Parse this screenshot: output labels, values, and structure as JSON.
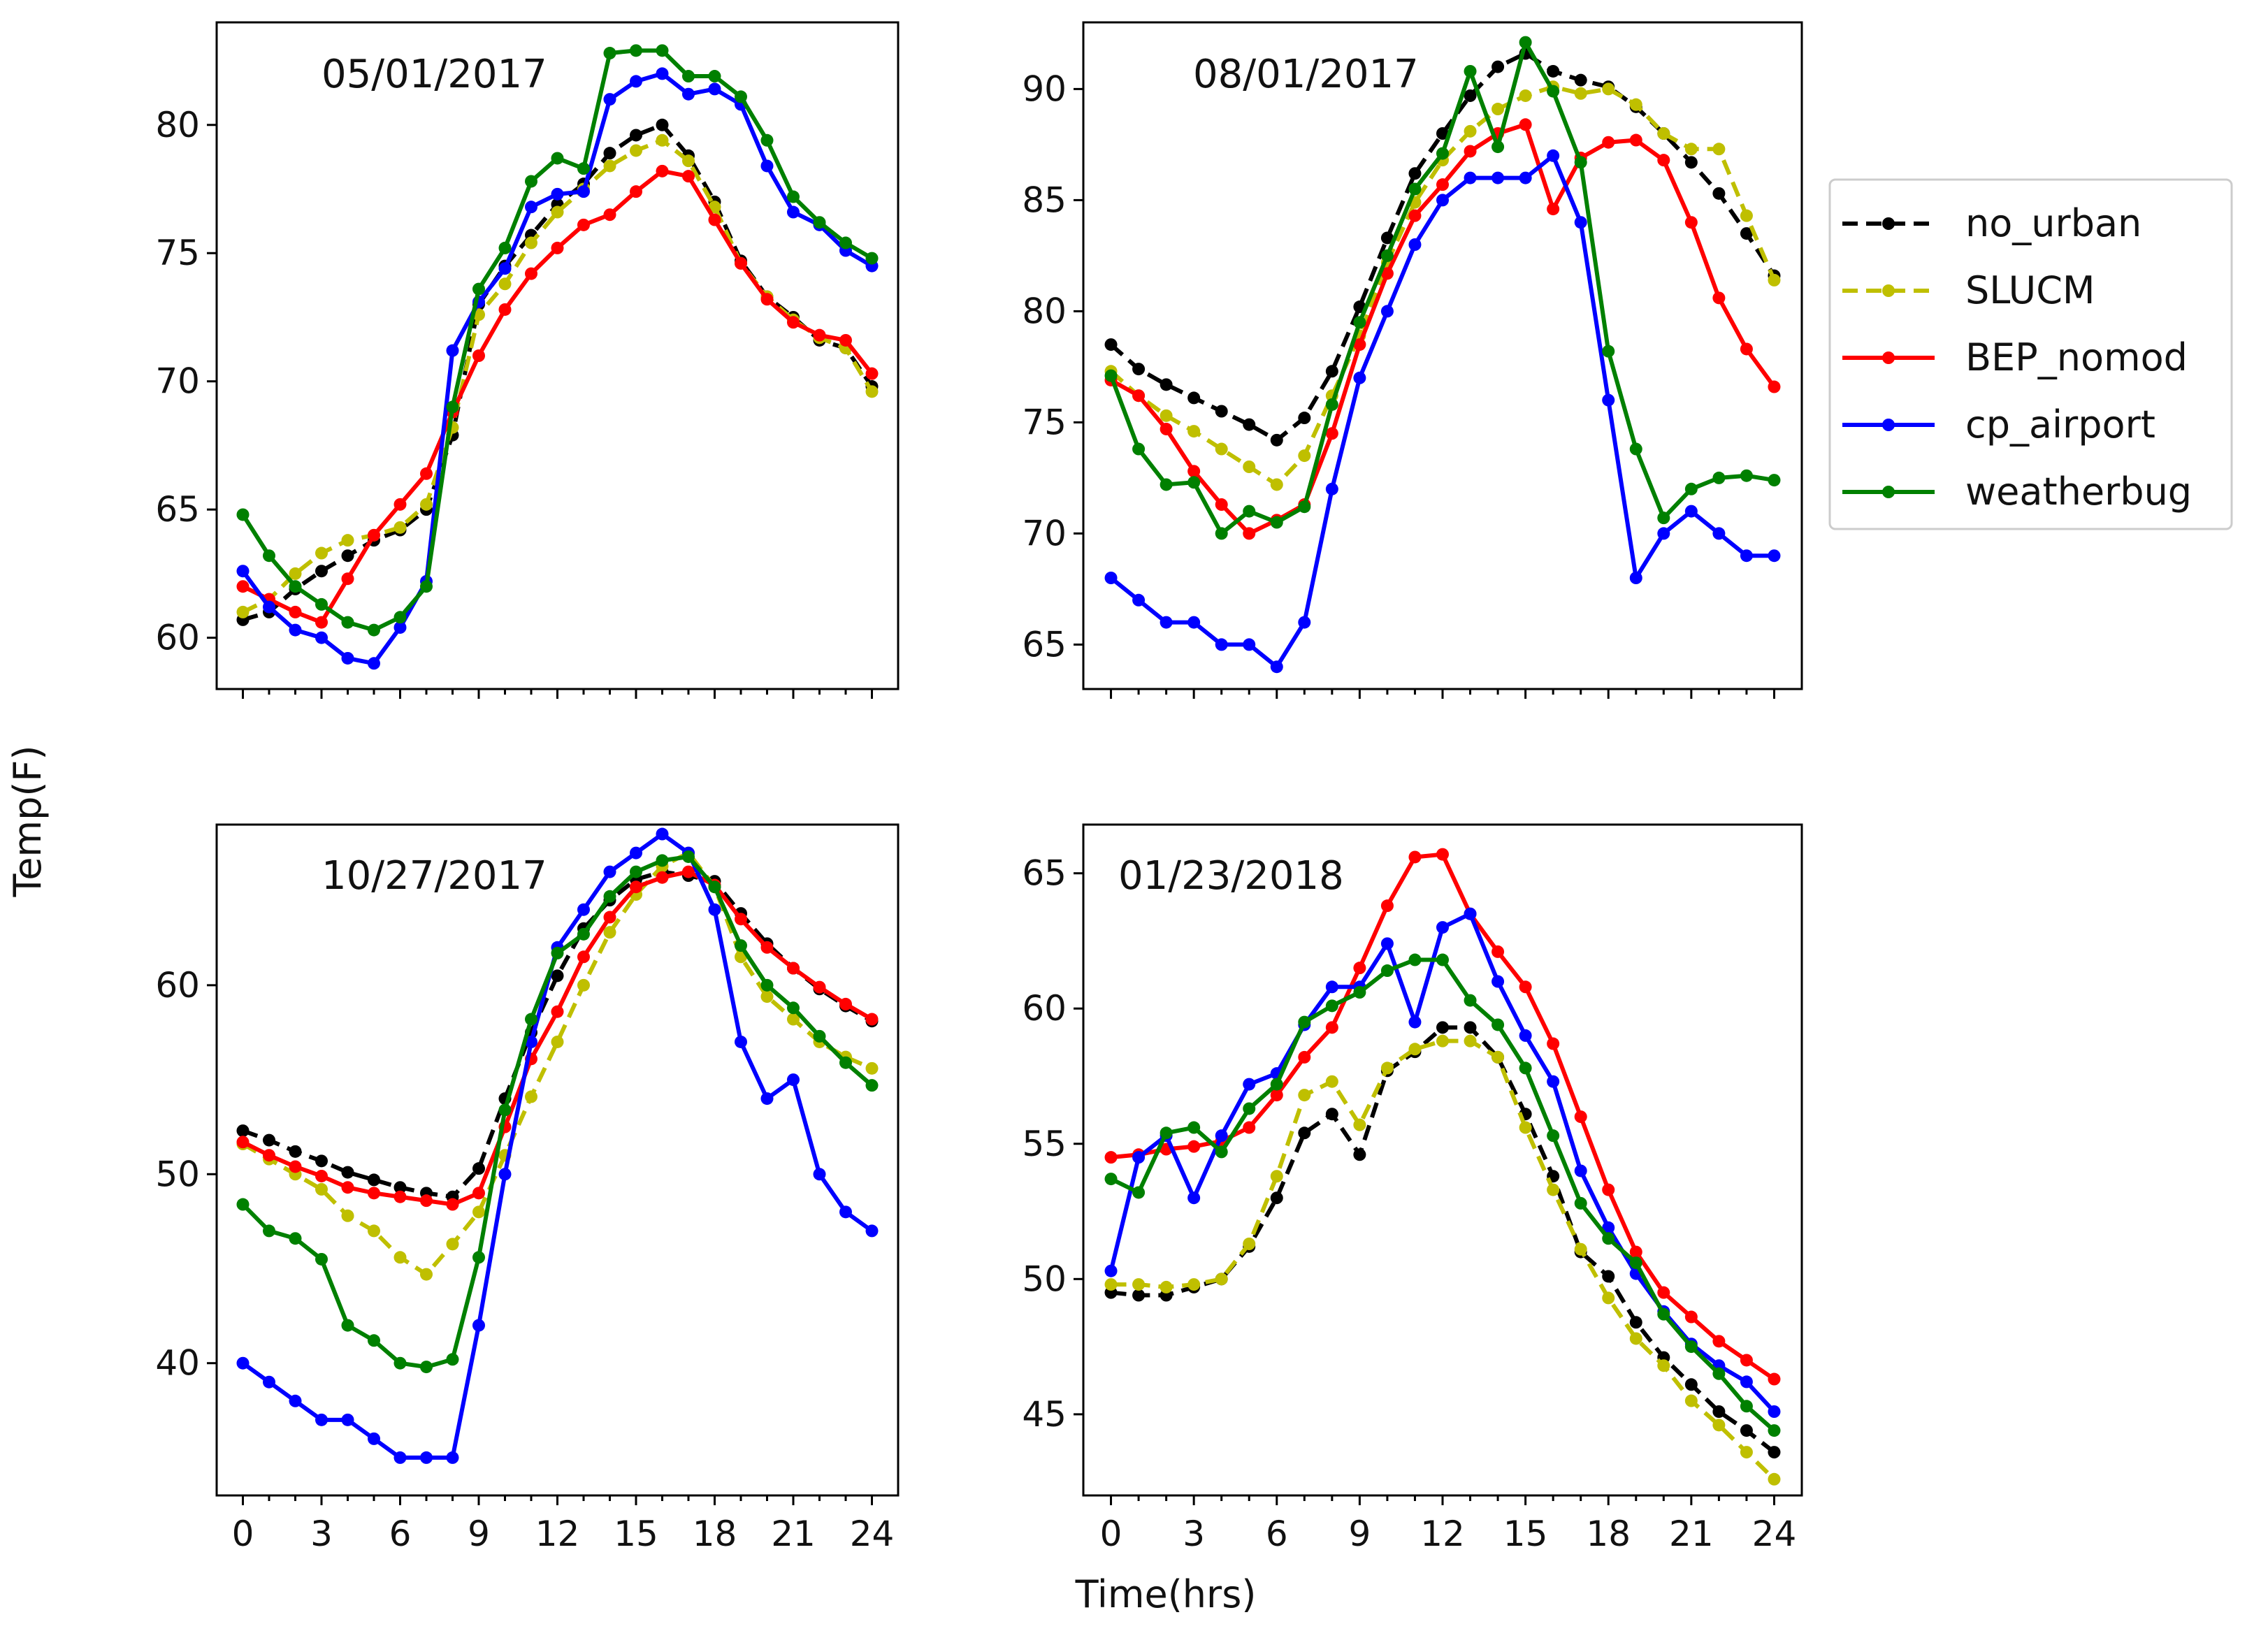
{
  "figure": {
    "ylabel": "Temp(F)",
    "xlabel": "Time(hrs)",
    "legend_position": "right"
  },
  "legend": [
    {
      "name": "no_urban",
      "color": "#000000",
      "style": "dashed"
    },
    {
      "name": "SLUCM",
      "color": "#bfbf00",
      "style": "dashed"
    },
    {
      "name": "BEP_nomod",
      "color": "#ff0000",
      "style": "solid"
    },
    {
      "name": "cp_airport",
      "color": "#0000ff",
      "style": "solid"
    },
    {
      "name": "weatherbug",
      "color": "#008000",
      "style": "solid"
    }
  ],
  "chart_data": [
    {
      "type": "line",
      "title": "05/01/2017",
      "xlabel": "",
      "ylabel": "Temp(F)",
      "xlim": [
        -1,
        25
      ],
      "ylim": [
        58,
        84
      ],
      "xticks": [
        0,
        3,
        6,
        9,
        12,
        15,
        18,
        21,
        24
      ],
      "yticks": [
        60,
        65,
        70,
        75,
        80
      ],
      "x": [
        0,
        1,
        2,
        3,
        4,
        5,
        6,
        7,
        8,
        9,
        10,
        11,
        12,
        13,
        14,
        15,
        16,
        17,
        18,
        19,
        20,
        21,
        22,
        23,
        24
      ],
      "series": [
        {
          "name": "no_urban",
          "values": [
            60.7,
            61.0,
            61.9,
            62.6,
            63.2,
            63.8,
            64.2,
            65.0,
            67.9,
            73.0,
            74.5,
            75.7,
            76.9,
            77.7,
            78.9,
            79.6,
            80.0,
            78.8,
            77.0,
            74.7,
            73.3,
            72.5,
            71.6,
            71.3,
            69.8
          ]
        },
        {
          "name": "SLUCM",
          "values": [
            61.0,
            61.5,
            62.5,
            63.3,
            63.8,
            64.0,
            64.3,
            65.2,
            68.2,
            72.6,
            73.8,
            75.4,
            76.6,
            77.5,
            78.4,
            79.0,
            79.4,
            78.6,
            76.8,
            74.6,
            73.3,
            72.4,
            71.7,
            71.3,
            69.6
          ]
        },
        {
          "name": "BEP_nomod",
          "values": [
            62.0,
            61.5,
            61.0,
            60.6,
            62.3,
            64.0,
            65.2,
            66.4,
            68.8,
            71.0,
            72.8,
            74.2,
            75.2,
            76.1,
            76.5,
            77.4,
            78.2,
            78.0,
            76.3,
            74.6,
            73.2,
            72.3,
            71.8,
            71.6,
            70.3
          ]
        },
        {
          "name": "cp_airport",
          "values": [
            62.6,
            61.2,
            60.3,
            60.0,
            59.2,
            59.0,
            60.4,
            62.2,
            71.2,
            73.1,
            74.4,
            76.8,
            77.3,
            77.4,
            81.0,
            81.7,
            82.0,
            81.2,
            81.4,
            80.8,
            78.4,
            76.6,
            76.1,
            75.1,
            74.5
          ]
        },
        {
          "name": "weatherbug",
          "values": [
            64.8,
            63.2,
            62.0,
            61.3,
            60.6,
            60.3,
            60.8,
            62.0,
            69.0,
            73.6,
            75.2,
            77.8,
            78.7,
            78.3,
            82.8,
            82.9,
            82.9,
            81.9,
            81.9,
            81.1,
            79.4,
            77.2,
            76.2,
            75.4,
            74.8
          ]
        }
      ]
    },
    {
      "type": "line",
      "title": "08/01/2017",
      "xlabel": "",
      "ylabel": "",
      "xlim": [
        -1,
        25
      ],
      "ylim": [
        63,
        93
      ],
      "xticks": [
        0,
        3,
        6,
        9,
        12,
        15,
        18,
        21,
        24
      ],
      "yticks": [
        65,
        70,
        75,
        80,
        85,
        90
      ],
      "x": [
        0,
        1,
        2,
        3,
        4,
        5,
        6,
        7,
        8,
        9,
        10,
        11,
        12,
        13,
        14,
        15,
        16,
        17,
        18,
        19,
        20,
        21,
        22,
        23,
        24
      ],
      "series": [
        {
          "name": "no_urban",
          "values": [
            78.5,
            77.4,
            76.7,
            76.1,
            75.5,
            74.9,
            74.2,
            75.2,
            77.3,
            80.2,
            83.3,
            86.2,
            88.0,
            89.7,
            91.0,
            91.6,
            90.8,
            90.4,
            90.1,
            89.2,
            88.0,
            86.7,
            85.3,
            83.5,
            81.6
          ]
        },
        {
          "name": "SLUCM",
          "values": [
            77.3,
            76.2,
            75.3,
            74.6,
            73.8,
            73.0,
            72.2,
            73.5,
            76.2,
            78.9,
            82.2,
            84.9,
            86.8,
            88.1,
            89.1,
            89.7,
            90.1,
            89.8,
            90.0,
            89.3,
            88.0,
            87.3,
            87.3,
            84.3,
            81.4
          ]
        },
        {
          "name": "BEP_nomod",
          "values": [
            76.9,
            76.2,
            74.7,
            72.8,
            71.3,
            70.0,
            70.6,
            71.3,
            74.5,
            78.5,
            81.7,
            84.3,
            85.7,
            87.2,
            88.0,
            88.4,
            84.6,
            86.9,
            87.6,
            87.7,
            86.8,
            84.0,
            80.6,
            78.3,
            76.6
          ]
        },
        {
          "name": "cp_airport",
          "values": [
            68.0,
            67.0,
            66.0,
            66.0,
            65.0,
            65.0,
            64.0,
            66.0,
            72.0,
            77.0,
            80.0,
            83.0,
            85.0,
            86.0,
            86.0,
            86.0,
            87.0,
            84.0,
            76.0,
            68.0,
            70.0,
            71.0,
            70.0,
            69.0,
            69.0
          ]
        },
        {
          "name": "weatherbug",
          "values": [
            77.1,
            73.8,
            72.2,
            72.3,
            70.0,
            71.0,
            70.5,
            71.2,
            75.8,
            79.5,
            82.5,
            85.5,
            87.1,
            90.8,
            87.4,
            92.1,
            89.9,
            86.7,
            78.2,
            73.8,
            70.7,
            72.0,
            72.5,
            72.6,
            72.4
          ]
        }
      ]
    },
    {
      "type": "line",
      "title": "10/27/2017",
      "xlabel": "",
      "ylabel": "",
      "xlim": [
        -1,
        25
      ],
      "ylim": [
        33,
        68.5
      ],
      "xticks": [
        0,
        3,
        6,
        9,
        12,
        15,
        18,
        21,
        24
      ],
      "yticks": [
        40,
        50,
        60
      ],
      "x": [
        0,
        1,
        2,
        3,
        4,
        5,
        6,
        7,
        8,
        9,
        10,
        11,
        12,
        13,
        14,
        15,
        16,
        17,
        18,
        19,
        20,
        21,
        22,
        23,
        24
      ],
      "series": [
        {
          "name": "no_urban",
          "values": [
            52.3,
            51.8,
            51.2,
            50.7,
            50.1,
            49.7,
            49.3,
            49.0,
            48.8,
            50.3,
            54.0,
            57.5,
            60.5,
            63.0,
            64.5,
            65.6,
            66.0,
            65.8,
            65.5,
            63.8,
            62.2,
            60.9,
            59.8,
            58.9,
            58.1
          ]
        },
        {
          "name": "SLUCM",
          "values": [
            51.6,
            50.8,
            50.0,
            49.2,
            47.8,
            47.0,
            45.6,
            44.7,
            46.3,
            48.0,
            51.0,
            54.1,
            57.0,
            60.0,
            62.8,
            64.8,
            66.3,
            67.0,
            65.2,
            61.5,
            59.4,
            58.2,
            57.0,
            56.2,
            55.6
          ]
        },
        {
          "name": "BEP_nomod",
          "values": [
            51.7,
            51.0,
            50.4,
            49.9,
            49.3,
            49.0,
            48.8,
            48.6,
            48.4,
            49.0,
            52.5,
            56.1,
            58.6,
            61.5,
            63.6,
            65.2,
            65.7,
            66.0,
            65.3,
            63.5,
            62.0,
            60.9,
            59.9,
            59.0,
            58.2
          ]
        },
        {
          "name": "cp_airport",
          "values": [
            40.0,
            39.0,
            38.0,
            37.0,
            37.0,
            36.0,
            35.0,
            35.0,
            35.0,
            42.0,
            50.0,
            57.0,
            62.0,
            64.0,
            66.0,
            67.0,
            68.0,
            67.0,
            64.0,
            57.0,
            54.0,
            55.0,
            50.0,
            48.0,
            47.0
          ]
        },
        {
          "name": "weatherbug",
          "values": [
            48.4,
            47.0,
            46.6,
            45.5,
            42.0,
            41.2,
            40.0,
            39.8,
            40.2,
            45.6,
            53.4,
            58.2,
            61.7,
            62.7,
            64.7,
            66.0,
            66.6,
            66.8,
            65.2,
            62.1,
            60.0,
            58.8,
            57.3,
            55.9,
            54.7
          ]
        }
      ]
    },
    {
      "type": "line",
      "title": "01/23/2018",
      "xlabel": "Time(hrs)",
      "ylabel": "",
      "xlim": [
        -1,
        25
      ],
      "ylim": [
        42,
        66.8
      ],
      "xticks": [
        0,
        3,
        6,
        9,
        12,
        15,
        18,
        21,
        24
      ],
      "yticks": [
        45,
        50,
        55,
        60,
        65
      ],
      "x": [
        0,
        1,
        2,
        3,
        4,
        5,
        6,
        7,
        8,
        9,
        10,
        11,
        12,
        13,
        14,
        15,
        16,
        17,
        18,
        19,
        20,
        21,
        22,
        23,
        24
      ],
      "series": [
        {
          "name": "no_urban",
          "values": [
            49.5,
            49.4,
            49.4,
            49.7,
            50.0,
            51.2,
            53.0,
            55.4,
            56.1,
            54.6,
            57.7,
            58.4,
            59.3,
            59.3,
            58.2,
            56.1,
            53.8,
            51.0,
            50.1,
            48.4,
            47.1,
            46.1,
            45.1,
            44.4,
            43.6
          ]
        },
        {
          "name": "SLUCM",
          "values": [
            49.8,
            49.8,
            49.7,
            49.8,
            50.0,
            51.3,
            53.8,
            56.8,
            57.3,
            55.7,
            57.8,
            58.5,
            58.8,
            58.8,
            58.2,
            55.6,
            53.3,
            51.1,
            49.3,
            47.8,
            46.8,
            45.5,
            44.6,
            43.6,
            42.6
          ]
        },
        {
          "name": "BEP_nomod",
          "values": [
            54.5,
            54.6,
            54.8,
            54.9,
            55.1,
            55.6,
            56.8,
            58.2,
            59.3,
            61.5,
            63.8,
            65.6,
            65.7,
            63.5,
            62.1,
            60.8,
            58.7,
            56.0,
            53.3,
            51.0,
            49.5,
            48.6,
            47.7,
            47.0,
            46.3
          ]
        },
        {
          "name": "cp_airport",
          "values": [
            50.3,
            54.5,
            55.3,
            53.0,
            55.3,
            57.2,
            57.6,
            59.4,
            60.8,
            60.8,
            62.4,
            59.5,
            63.0,
            63.5,
            61.0,
            59.0,
            57.3,
            54.0,
            51.9,
            50.2,
            48.8,
            47.6,
            46.8,
            46.2,
            45.1
          ]
        },
        {
          "name": "weatherbug",
          "values": [
            53.7,
            53.2,
            55.4,
            55.6,
            54.7,
            56.3,
            57.2,
            59.5,
            60.1,
            60.6,
            61.4,
            61.8,
            61.8,
            60.3,
            59.4,
            57.8,
            55.3,
            52.8,
            51.5,
            50.6,
            48.7,
            47.5,
            46.5,
            45.3,
            44.4
          ]
        }
      ]
    }
  ]
}
